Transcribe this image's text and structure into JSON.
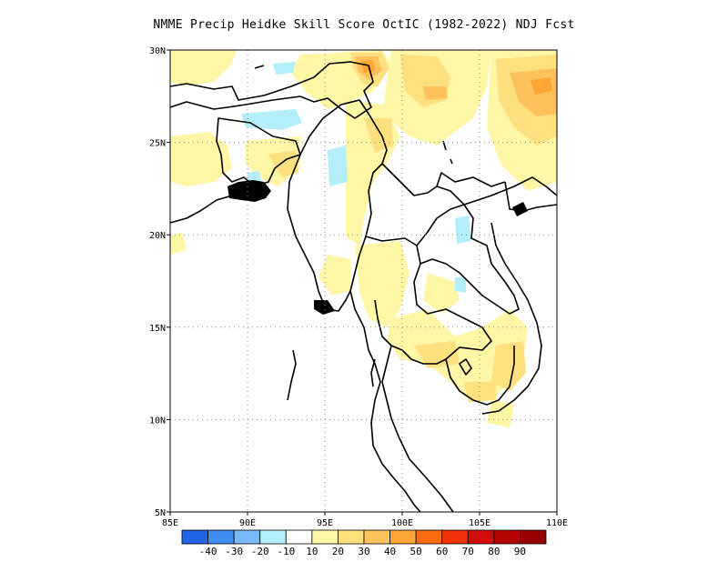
{
  "title": "NMME Precip Heidke Skill Score OctIC (1982-2022) NDJ Fcst",
  "map": {
    "lon_range": [
      85,
      110
    ],
    "lat_range": [
      5,
      30
    ],
    "lat_ticks": [
      {
        "value": 30,
        "label": "30N"
      },
      {
        "value": 25,
        "label": "25N"
      },
      {
        "value": 20,
        "label": "20N"
      },
      {
        "value": 15,
        "label": "15N"
      },
      {
        "value": 10,
        "label": "10N"
      },
      {
        "value": 5,
        "label": "5N"
      }
    ],
    "lon_ticks": [
      {
        "value": 85,
        "label": "85E"
      },
      {
        "value": 90,
        "label": "90E"
      },
      {
        "value": 95,
        "label": "95E"
      },
      {
        "value": 100,
        "label": "100E"
      },
      {
        "value": 105,
        "label": "105E"
      },
      {
        "value": 110,
        "label": "110E"
      }
    ],
    "gridlines": "dotted"
  },
  "colorbar": {
    "labels": [
      "-40",
      "-30",
      "-20",
      "-10",
      "10",
      "20",
      "30",
      "40",
      "50",
      "60",
      "70",
      "80",
      "90"
    ],
    "colors": [
      "#2164e6",
      "#3d8ef0",
      "#78b9f7",
      "#b3eefa",
      "#ffffff",
      "#fff6a6",
      "#fee07f",
      "#fec25c",
      "#fda535",
      "#fb6c11",
      "#f2330a",
      "#d20b0b",
      "#b40404",
      "#970000"
    ]
  },
  "colors": {
    "skill_10_20": "#fff6a6",
    "skill_20_30": "#fee07f",
    "skill_30_40": "#fec25c",
    "skill_40_50": "#fda535",
    "skill_neg_10": "#b3eefa"
  }
}
